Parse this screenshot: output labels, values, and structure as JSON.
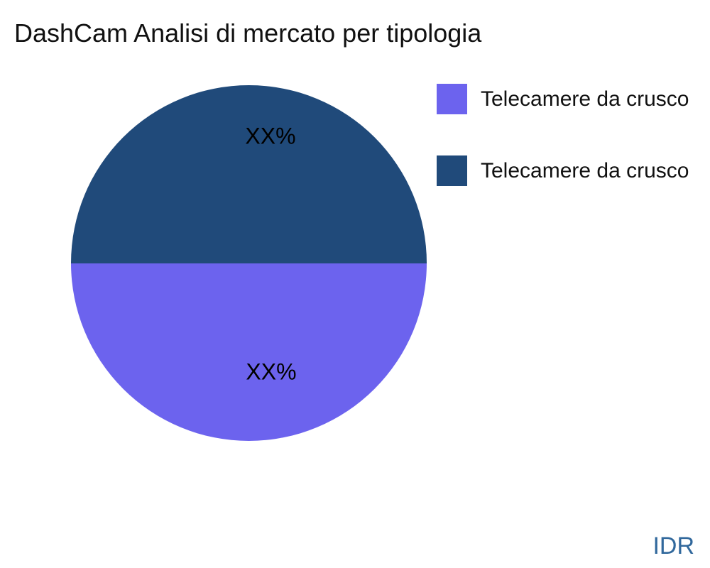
{
  "page": {
    "watermark": "IDR",
    "watermark_color": "#31689C",
    "background": "#ffffff"
  },
  "chart_data": {
    "type": "pie",
    "title": "DashCam Analisi di mercato per tipologia",
    "legend_position": "right",
    "labels_inside": true,
    "slices": [
      {
        "label": "Telecamere da crusco",
        "display_value": "XX%",
        "value_pct_visual": 50,
        "color": "#6C63EE",
        "position": "bottom-half"
      },
      {
        "label": "Telecamere da crusco",
        "display_value": "XX%",
        "value_pct_visual": 50,
        "color": "#204A7A",
        "position": "top-half"
      }
    ]
  }
}
